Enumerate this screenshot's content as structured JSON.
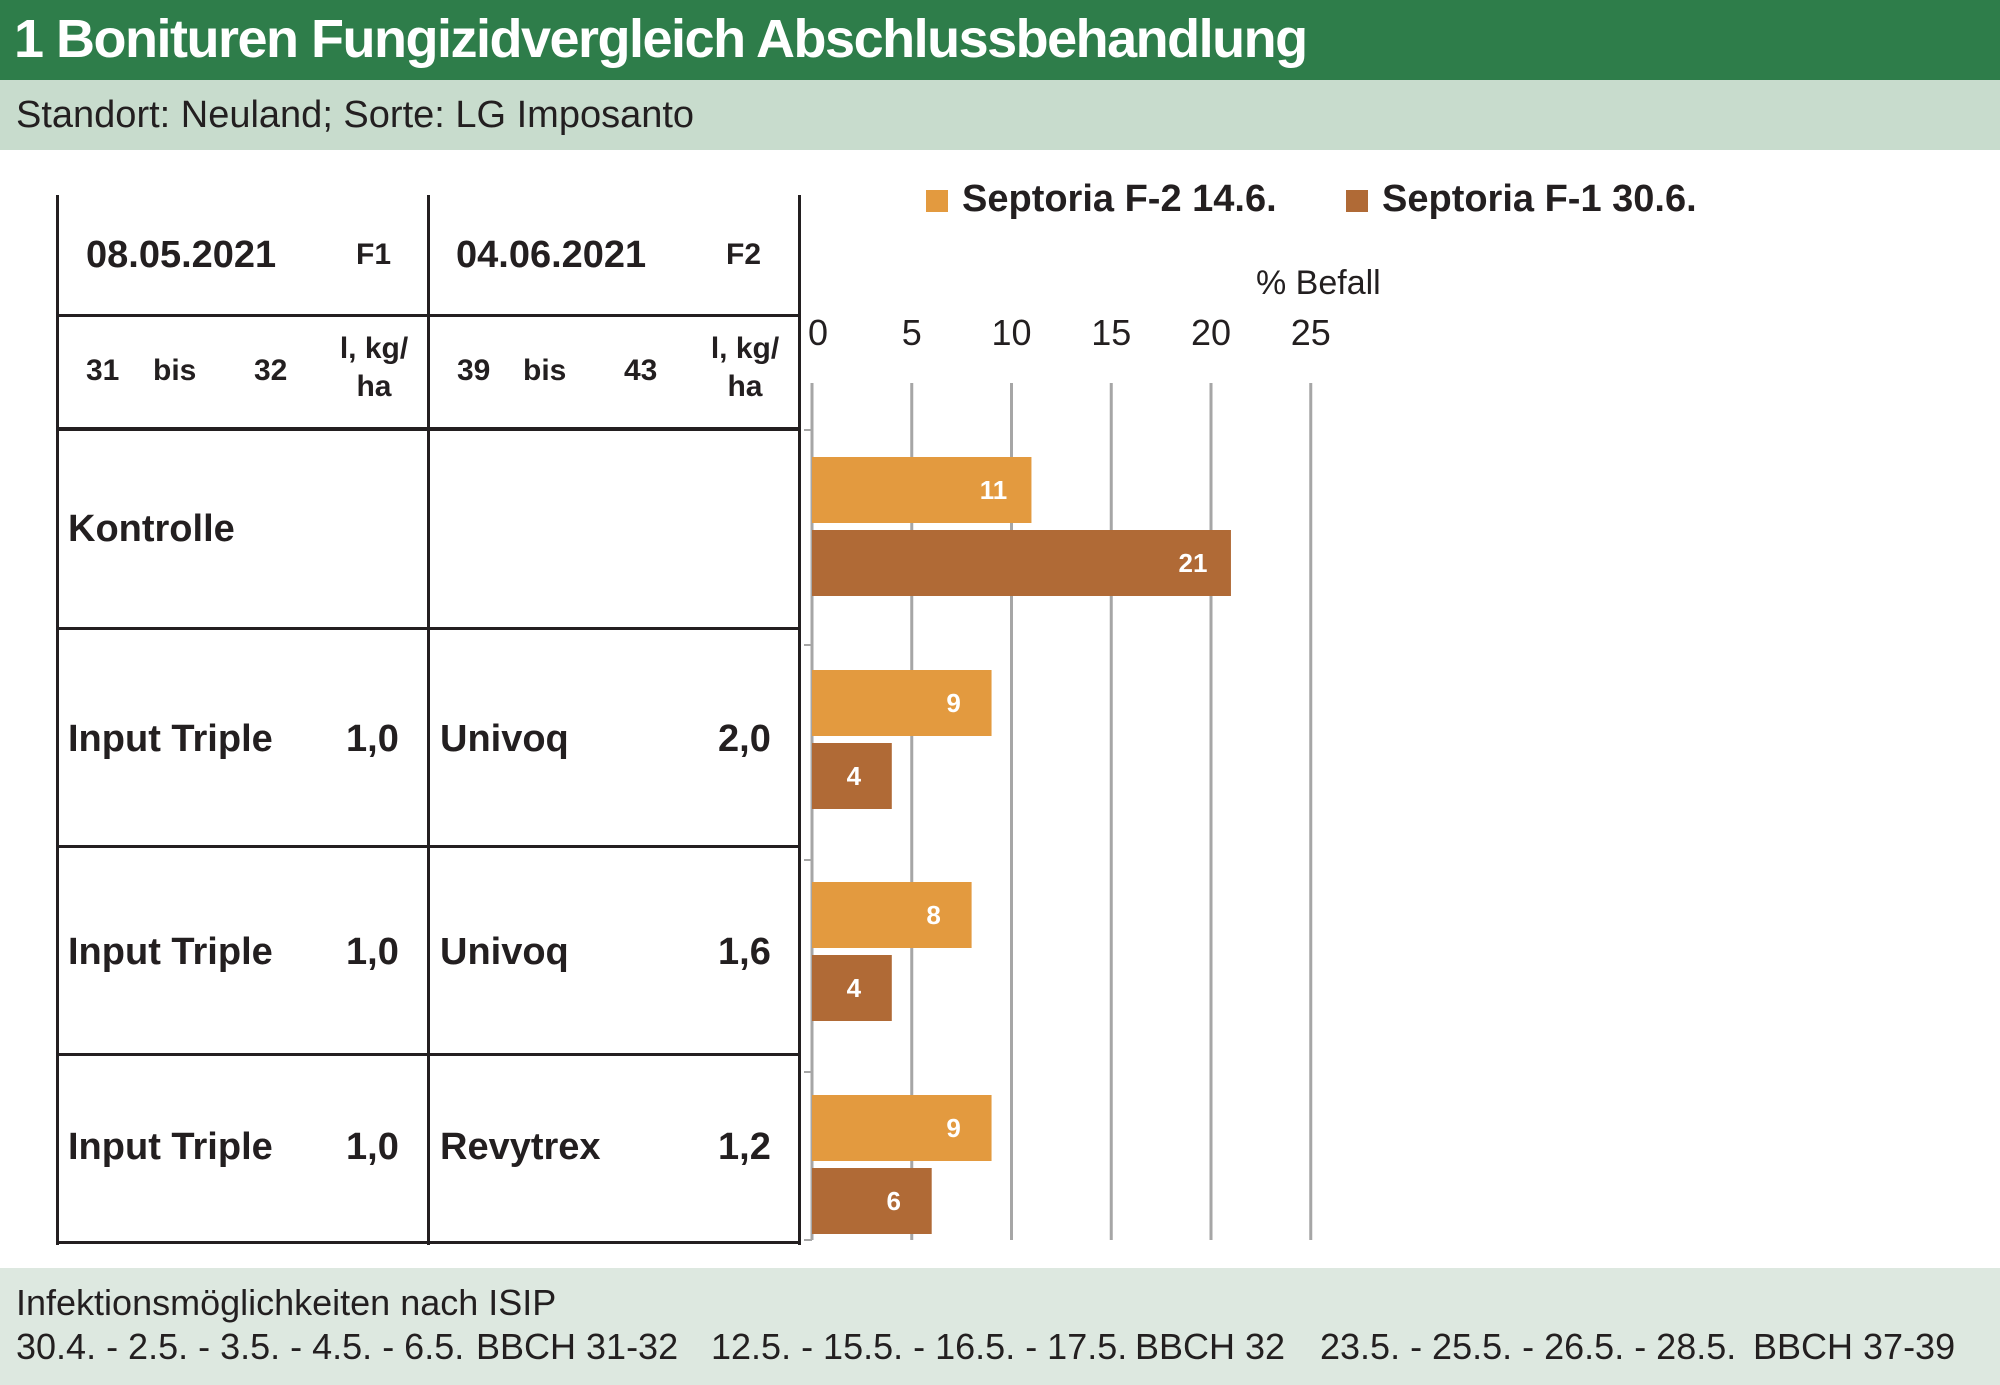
{
  "header": {
    "title": "1 Bonituren Fungizidvergleich Abschlussbehandlung",
    "subtitle": "Standort: Neuland; Sorte: LG Imposanto"
  },
  "table": {
    "f1": {
      "date": "08.05.2021",
      "code": "F1",
      "bbch_from": "31",
      "bis": "bis",
      "bbch_to": "32",
      "unit_line1": "l, kg/",
      "unit_line2": "ha"
    },
    "f2": {
      "date": "04.06.2021",
      "code": "F2",
      "bbch_from": "39",
      "bis": "bis",
      "bbch_to": "43",
      "unit_line1": "l, kg/",
      "unit_line2": "ha"
    },
    "rows": [
      {
        "product1": "Kontrolle",
        "rate1": "",
        "product2": "",
        "rate2": ""
      },
      {
        "product1": "Input Triple",
        "rate1": "1,0",
        "product2": "Univoq",
        "rate2": "2,0"
      },
      {
        "product1": "Input Triple",
        "rate1": "1,0",
        "product2": "Univoq",
        "rate2": "1,6"
      },
      {
        "product1": "Input Triple",
        "rate1": "1,0",
        "product2": "Revytrex",
        "rate2": "1,2"
      }
    ]
  },
  "chart_data": {
    "type": "bar",
    "orientation": "horizontal",
    "xlabel": "% Befall",
    "xlim": [
      0,
      25
    ],
    "xticks": [
      "0",
      "5",
      "10",
      "15",
      "20",
      "25"
    ],
    "grid": true,
    "legend_position": "top",
    "categories": [
      "Kontrolle",
      "Input Triple 1,0 / Univoq 2,0",
      "Input Triple 1,0 / Univoq 1,6",
      "Input Triple 1,0 / Revytrex 1,2"
    ],
    "series": [
      {
        "name": "Septoria F-2 14.6.",
        "color": "#e39a3f",
        "values": [
          11,
          9,
          8,
          9
        ]
      },
      {
        "name": "Septoria F-1 30.6.",
        "color": "#b06a36",
        "values": [
          21,
          4,
          4,
          6
        ]
      }
    ]
  },
  "footer": {
    "title": "Infektionsmöglichkeiten nach ISIP",
    "items": [
      "30.4. - 2.5. - 3.5. - 4.5. - 6.5.",
      "BBCH 31-32",
      "12.5. - 15.5. - 16.5. - 17.5.",
      "BBCH 32",
      "23.5. - 25.5. - 26.5. - 28.5.",
      "BBCH 37-39"
    ]
  }
}
